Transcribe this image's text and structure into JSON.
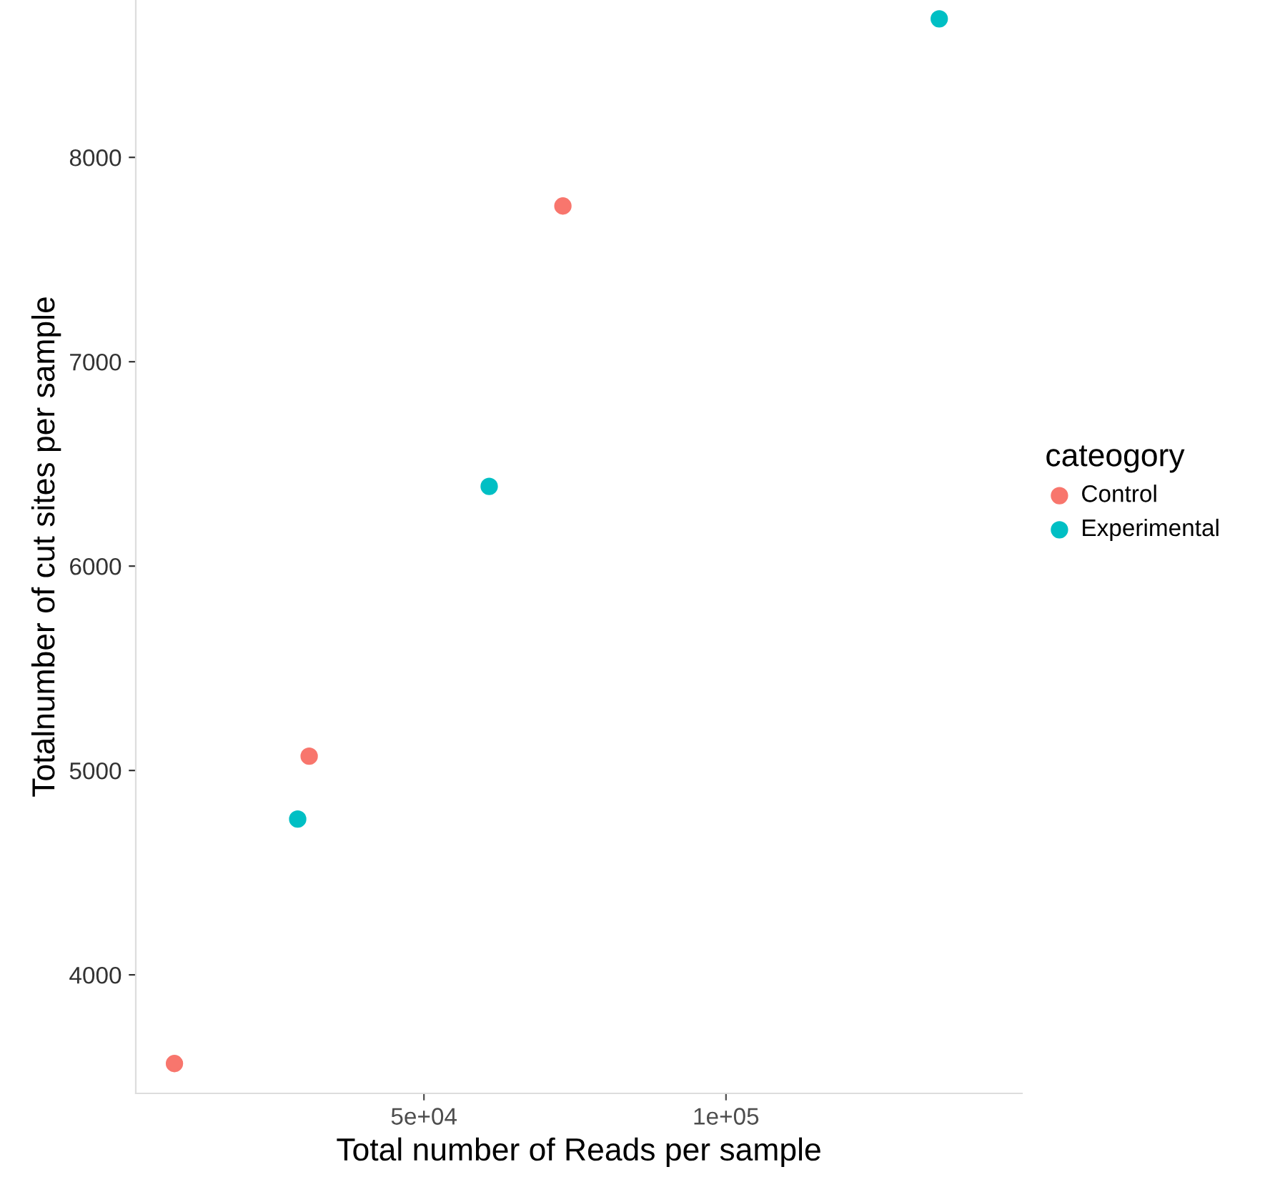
{
  "chart_data": {
    "type": "scatter",
    "xlabel": "Total number of Reads per sample",
    "ylabel": "Totalnumber of cut sites per sample",
    "legend_title": "cateogory",
    "series": [
      {
        "name": "Control",
        "color": "#f8766d",
        "x": [
          8700,
          31000,
          73000
        ],
        "values": [
          3566,
          5070,
          7762
        ]
      },
      {
        "name": "Experimental",
        "color": "#00bfc4",
        "x": [
          29100,
          60800,
          135300
        ],
        "values": [
          4762,
          6390,
          8678
        ]
      }
    ],
    "xlim": [
      2300,
      149000
    ],
    "ylim": [
      3420,
      8770
    ],
    "xticks": [
      {
        "value": 50000,
        "label": "5e+04"
      },
      {
        "value": 100000,
        "label": "1e+05"
      }
    ],
    "yticks": [
      4000,
      5000,
      6000,
      7000,
      8000
    ],
    "marker": "circle",
    "legend": "right",
    "grid": false
  }
}
